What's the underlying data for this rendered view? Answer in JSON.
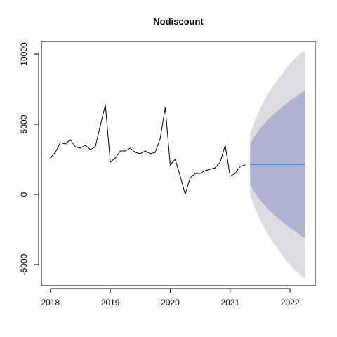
{
  "chart_data": {
    "type": "line",
    "title": "Nodiscount",
    "xlabel": "",
    "ylabel": "",
    "xlim": [
      2017.85,
      2022.42
    ],
    "ylim": [
      -6500,
      10900
    ],
    "x_ticks": [
      {
        "value": 2018,
        "label": "2018"
      },
      {
        "value": 2019,
        "label": "2019"
      },
      {
        "value": 2020,
        "label": "2020"
      },
      {
        "value": 2021,
        "label": "2021"
      },
      {
        "value": 2022,
        "label": "2022"
      }
    ],
    "y_ticks": [
      {
        "value": -5000,
        "label": "-5000"
      },
      {
        "value": 0,
        "label": "0"
      },
      {
        "value": 5000,
        "label": "5000"
      },
      {
        "value": 10000,
        "label": "10000"
      }
    ],
    "grid": false,
    "series": [
      {
        "role": "observed",
        "color": "#000000",
        "x": [
          2018.0,
          2018.083,
          2018.167,
          2018.25,
          2018.333,
          2018.417,
          2018.5,
          2018.583,
          2018.667,
          2018.75,
          2018.833,
          2018.917,
          2019.0,
          2019.083,
          2019.167,
          2019.25,
          2019.333,
          2019.417,
          2019.5,
          2019.583,
          2019.667,
          2019.75,
          2019.833,
          2019.917,
          2020.0,
          2020.083,
          2020.167,
          2020.25,
          2020.333,
          2020.417,
          2020.5,
          2020.583,
          2020.667,
          2020.75,
          2020.833,
          2020.917,
          2021.0,
          2021.083,
          2021.167,
          2021.25
        ],
        "y": [
          2600,
          3000,
          3700,
          3600,
          3900,
          3400,
          3300,
          3500,
          3200,
          3400,
          4900,
          6400,
          2300,
          2600,
          3100,
          3100,
          3300,
          3000,
          2900,
          3100,
          2900,
          3000,
          4000,
          6200,
          2100,
          2500,
          1300,
          0,
          1200,
          1500,
          1500,
          1700,
          1800,
          1900,
          2300,
          3500,
          1300,
          1500,
          2000,
          2100
        ]
      }
    ],
    "forecast": {
      "color": "#3c8ee0",
      "x": [
        2021.333,
        2022.25
      ],
      "mean": 2150,
      "band_80": {
        "color": "#b0b2d2",
        "x": [
          2021.333,
          2021.417,
          2021.5,
          2021.583,
          2021.667,
          2021.75,
          2021.833,
          2021.917,
          2022.0,
          2022.083,
          2022.167,
          2022.25
        ],
        "upper": [
          3600,
          4200,
          4700,
          5100,
          5500,
          5800,
          6100,
          6400,
          6700,
          6900,
          7200,
          7400
        ],
        "lower": [
          700,
          100,
          -400,
          -800,
          -1200,
          -1500,
          -1800,
          -2100,
          -2400,
          -2600,
          -2900,
          -3100
        ]
      },
      "band_95": {
        "color": "#dcdce0",
        "x": [
          2021.333,
          2021.417,
          2021.5,
          2021.583,
          2021.667,
          2021.75,
          2021.833,
          2021.917,
          2022.0,
          2022.083,
          2022.167,
          2022.25
        ],
        "upper": [
          4300,
          5300,
          6100,
          6800,
          7400,
          7900,
          8400,
          8900,
          9300,
          9700,
          10000,
          10300
        ],
        "lower": [
          0,
          -1000,
          -1800,
          -2500,
          -3100,
          -3600,
          -4100,
          -4600,
          -5000,
          -5400,
          -5700,
          -6000
        ]
      }
    }
  }
}
